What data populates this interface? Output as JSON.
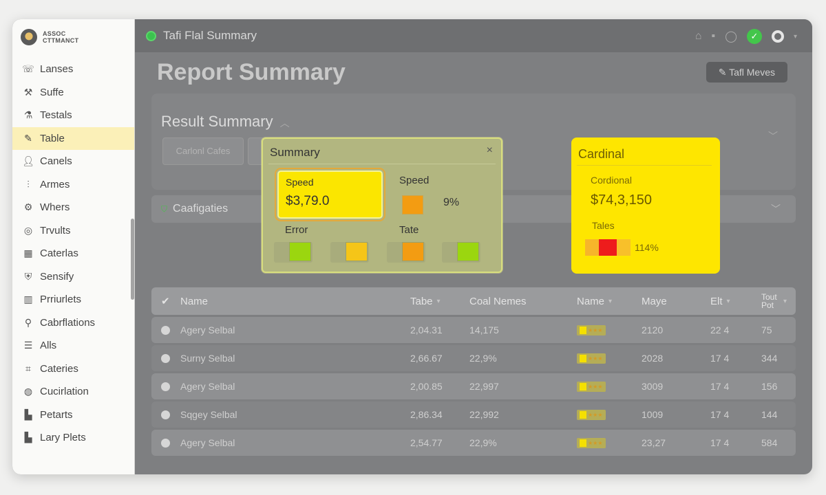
{
  "brand": {
    "line1": "ASSOC",
    "line2": "CTTMANCT"
  },
  "sidebar": {
    "items": [
      {
        "label": "Lanses",
        "icon": "phone-icon"
      },
      {
        "label": "Suffe",
        "icon": "tools-icon"
      },
      {
        "label": "Testals",
        "icon": "flask-icon"
      },
      {
        "label": "Table",
        "icon": "pencil-icon",
        "active": true
      },
      {
        "label": "Canels",
        "icon": "user-icon"
      },
      {
        "label": "Armes",
        "icon": "chart-icon"
      },
      {
        "label": "Whers",
        "icon": "gear-icon"
      },
      {
        "label": "Trvults",
        "icon": "circle-icon"
      },
      {
        "label": "Caterlas",
        "icon": "grid-icon"
      },
      {
        "label": "Sensify",
        "icon": "shield-icon"
      },
      {
        "label": "Prriurlets",
        "icon": "bars-icon"
      },
      {
        "label": "Cabrflations",
        "icon": "wrench-icon"
      },
      {
        "label": "Alls",
        "icon": "list-icon"
      },
      {
        "label": "Cateries",
        "icon": "tag-icon"
      },
      {
        "label": "Cucirlation",
        "icon": "globe-icon"
      },
      {
        "label": "Petarts",
        "icon": "building-icon"
      },
      {
        "label": "Lary Plets",
        "icon": "chart-bar-icon"
      }
    ]
  },
  "titlebar": {
    "title": "Tafi Flal Summary"
  },
  "header": {
    "title": "Report Summary",
    "button_label": "Tafl Meves"
  },
  "result": {
    "title": "Result Summary",
    "chip_label": "Carlonl Cafes"
  },
  "categories": {
    "label": "Caafigaties"
  },
  "table": {
    "columns": [
      "Name",
      "Tabe",
      "Coal Nemes",
      "Name",
      "Maye",
      "Elt",
      "Tout Pot"
    ],
    "rows": [
      {
        "name": "Agery Selbal",
        "tabe": "2,04.31",
        "coal": "14,175",
        "maye": "2120",
        "elt": "22 4",
        "pot": "75"
      },
      {
        "name": "Surny Selbal",
        "tabe": "2,66.67",
        "coal": "22,9%",
        "maye": "2028",
        "elt": "17 4",
        "pot": "344"
      },
      {
        "name": "Agery Selbal",
        "tabe": "2,00.85",
        "coal": "22,997",
        "maye": "3009",
        "elt": "17 4",
        "pot": "156"
      },
      {
        "name": "Sqgey Selbal",
        "tabe": "2,86.34",
        "coal": "22,992",
        "maye": "1009",
        "elt": "17 4",
        "pot": "144"
      },
      {
        "name": "Agery Selbal",
        "tabe": "2,54.77",
        "coal": "22,9%",
        "maye": "23,27",
        "elt": "17 4",
        "pot": "584"
      }
    ]
  },
  "summary": {
    "title": "Summary",
    "close": "×",
    "speed_label": "Speed",
    "speed_value": "$3,79.0",
    "speed2_label": "Speed",
    "speed2_pct": "9%",
    "error_label": "Error",
    "tate_label": "Tate",
    "swatches": [
      "#9bd60f",
      "#f5c518",
      "#f39c12",
      "#9bd60f"
    ]
  },
  "cardinal": {
    "title": "Cardinal",
    "sub": "Cordional",
    "value": "$74,3,150",
    "tales": "Tales",
    "pct": "114%"
  },
  "colors": {
    "accent_yellow": "#fee600",
    "active_nav": "#fbf0b8",
    "ok_green": "#43c64b"
  }
}
